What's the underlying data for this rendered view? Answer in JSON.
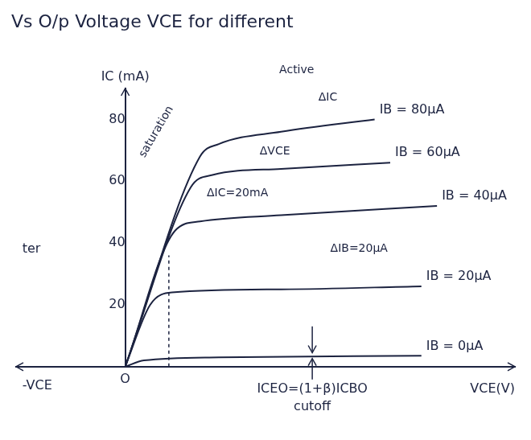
{
  "chart_data": {
    "type": "line",
    "title": "Vs O/p Voltage VCE for different",
    "x_label": "VCE(V)",
    "y_label": "IC (mA)",
    "xlim": [
      -3.5,
      12.5
    ],
    "xticks": [
      {
        "value": 0,
        "label": "O"
      }
    ],
    "ylim": [
      0,
      90
    ],
    "yticks": [
      20,
      40,
      60,
      80
    ],
    "grid": false,
    "color": "#1c2340",
    "line_style": "solid",
    "marker": "none",
    "series": [
      {
        "name": "IB = 80μA",
        "x": [
          0,
          2.4,
          3,
          5,
          8
        ],
        "values": [
          0,
          68,
          72,
          76,
          80
        ]
      },
      {
        "name": "IB = 60μA",
        "x": [
          0,
          2.1,
          2.8,
          5,
          8.5
        ],
        "values": [
          0,
          58,
          62,
          64,
          66
        ]
      },
      {
        "name": "IB = 40μA",
        "x": [
          0,
          1.6,
          2.4,
          5,
          10
        ],
        "values": [
          0,
          44,
          47,
          49,
          52
        ]
      },
      {
        "name": "IB = 20μA",
        "x": [
          0,
          0.8,
          1.5,
          5,
          9.5
        ],
        "values": [
          0,
          20,
          24,
          25,
          26
        ]
      },
      {
        "name": "IB = 0μA",
        "x": [
          0,
          0.6,
          3,
          9.5
        ],
        "values": [
          0,
          2,
          3,
          3.5
        ]
      }
    ],
    "annotations": [
      "Active",
      "ΔIC",
      "ΔVCE",
      "saturation",
      "ΔIC=20mA",
      "ΔIB=20μA",
      "ICEO=(1+β)ICBO",
      "cutoff",
      "-VCE",
      "ter"
    ]
  }
}
